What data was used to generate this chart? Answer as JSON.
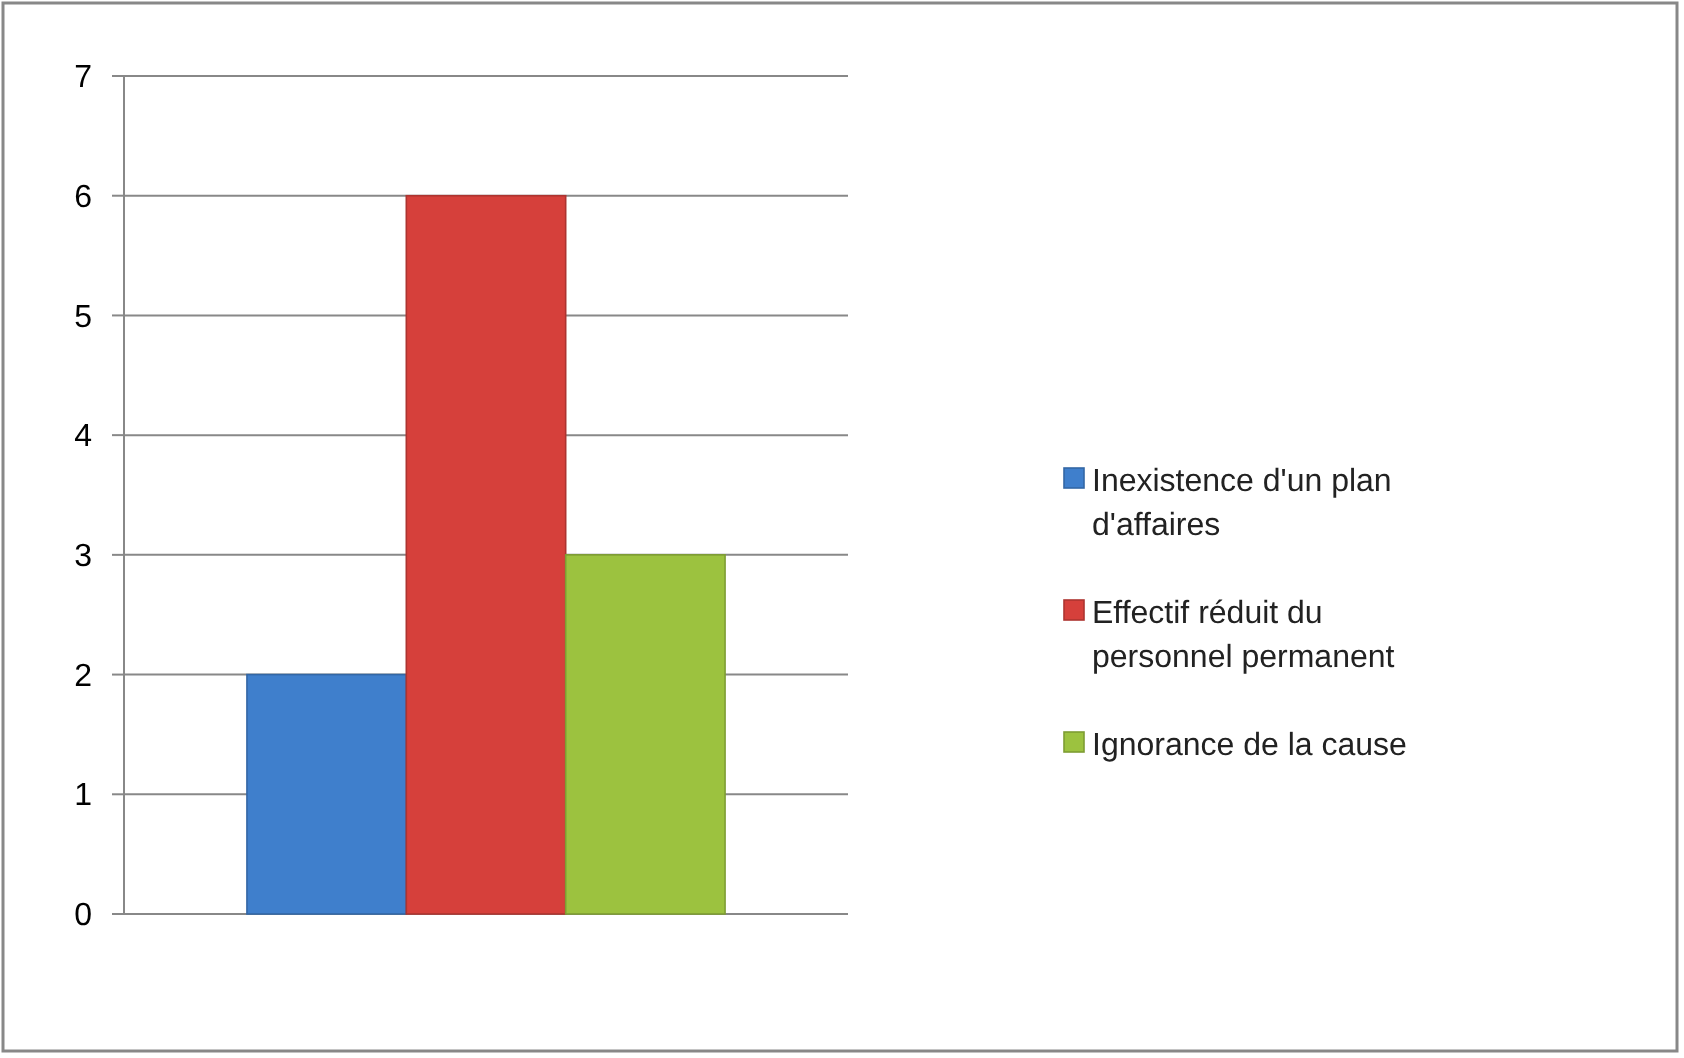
{
  "chart_data": {
    "type": "bar",
    "categories": [
      null
    ],
    "series": [
      {
        "name": "Inexistence d'un plan d'affaires",
        "color": "#3f7fcc",
        "values": [
          2
        ]
      },
      {
        "name": "Effectif réduit du personnel permanent",
        "color": "#d6403b",
        "values": [
          6
        ]
      },
      {
        "name": "Ignorance de la cause",
        "color": "#9cc23f",
        "values": [
          3
        ]
      }
    ],
    "ylim": [
      0,
      7
    ],
    "yticks": [
      0,
      1,
      2,
      3,
      4,
      5,
      6,
      7
    ],
    "grid": "y",
    "legend": "right"
  }
}
